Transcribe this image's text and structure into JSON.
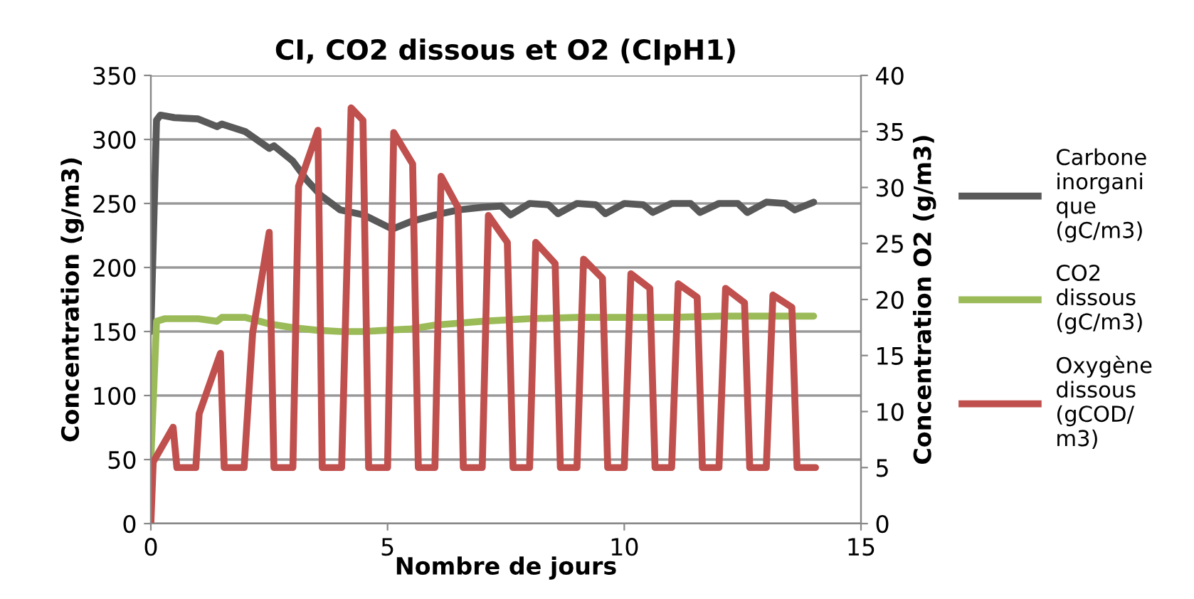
{
  "chart_data": {
    "type": "line",
    "title": "CI, CO2 dissous et O2 (CIpH1)",
    "xlabel": "Nombre de jours",
    "ylabel": "Concentration (g/m3)",
    "y2label": "Concentration O2 (g/m3)",
    "xlim": [
      0,
      15
    ],
    "xticks": [
      0,
      5,
      10,
      15
    ],
    "ylim": [
      0,
      350
    ],
    "yticks": [
      0,
      50,
      100,
      150,
      200,
      250,
      300,
      350
    ],
    "y2lim": [
      0,
      40
    ],
    "y2ticks": [
      0,
      5,
      10,
      15,
      20,
      25,
      30,
      35,
      40
    ],
    "grid": "y",
    "legend": "right",
    "marker": "none",
    "line_style": "solid",
    "series": [
      {
        "name": "Carbone\ninorgani\nque\n(gC/m3)",
        "color": "#595959",
        "x": [
          0,
          0.12,
          0.2,
          0.5,
          1.0,
          1.4,
          1.5,
          2.0,
          2.5,
          2.6,
          3.0,
          3.3,
          3.6,
          4.0,
          4.5,
          5.1,
          5.5,
          6.0,
          6.5,
          7.0,
          7.4,
          7.6,
          8.0,
          8.4,
          8.6,
          9.0,
          9.4,
          9.6,
          10.0,
          10.4,
          10.6,
          11.0,
          11.4,
          11.6,
          12.0,
          12.4,
          12.6,
          13.0,
          13.4,
          13.6,
          14.0
        ],
        "values": [
          150,
          315,
          319,
          317,
          316,
          310,
          312,
          306,
          293,
          295,
          283,
          268,
          256,
          245,
          241,
          230,
          236,
          241,
          245,
          247,
          248,
          241,
          250,
          249,
          242,
          250,
          249,
          242,
          250,
          249,
          243,
          250,
          250,
          243,
          250,
          250,
          243,
          251,
          250,
          245,
          251
        ]
      },
      {
        "name": "CO2\ndissous\n(gC/m3)",
        "color": "#9bbb59",
        "x": [
          0,
          0.12,
          0.3,
          1.0,
          1.4,
          1.5,
          2.0,
          2.5,
          3.0,
          3.5,
          4.0,
          4.5,
          5.0,
          5.5,
          6.0,
          7.0,
          8.0,
          9.0,
          10.0,
          11.0,
          12.0,
          13.0,
          14.0
        ],
        "values": [
          50,
          158,
          160,
          160,
          158,
          161,
          161,
          156,
          153,
          151,
          150,
          150,
          151,
          152,
          155,
          158,
          160,
          161,
          161,
          161,
          162,
          162,
          162
        ]
      },
      {
        "name": "Oxygène\ndissous\n(gCOD/\nm3)",
        "color": "#c0504d",
        "axis": "y2",
        "x": [
          0,
          0.05,
          0.47,
          0.55,
          0.95,
          1.02,
          1.47,
          1.55,
          1.97,
          2.15,
          2.5,
          2.6,
          3.0,
          3.12,
          3.53,
          3.62,
          4.03,
          4.23,
          4.48,
          4.6,
          5.0,
          5.13,
          5.53,
          5.65,
          6.0,
          6.13,
          6.49,
          6.6,
          7.0,
          7.13,
          7.53,
          7.65,
          8.0,
          8.13,
          8.54,
          8.65,
          9.0,
          9.14,
          9.54,
          9.65,
          10.0,
          10.14,
          10.54,
          10.65,
          11.0,
          11.14,
          11.54,
          11.65,
          12.0,
          12.14,
          12.54,
          12.65,
          13.0,
          13.14,
          13.54,
          13.65,
          14.04
        ],
        "values": [
          0,
          5.5,
          8.6,
          5,
          5,
          9.8,
          15.2,
          5,
          5,
          17,
          26.0,
          5,
          5,
          30.1,
          35.1,
          5,
          5,
          37.1,
          36.0,
          5,
          5,
          34.9,
          32.1,
          5,
          5,
          31.0,
          28.2,
          5,
          5,
          27.5,
          25.1,
          5,
          5,
          25.1,
          23.2,
          5,
          5,
          23.6,
          21.9,
          5,
          5,
          22.3,
          21.0,
          5,
          5,
          21.4,
          20.2,
          5,
          5,
          21.0,
          19.7,
          5,
          5,
          20.4,
          19.3,
          5,
          5
        ]
      }
    ]
  }
}
